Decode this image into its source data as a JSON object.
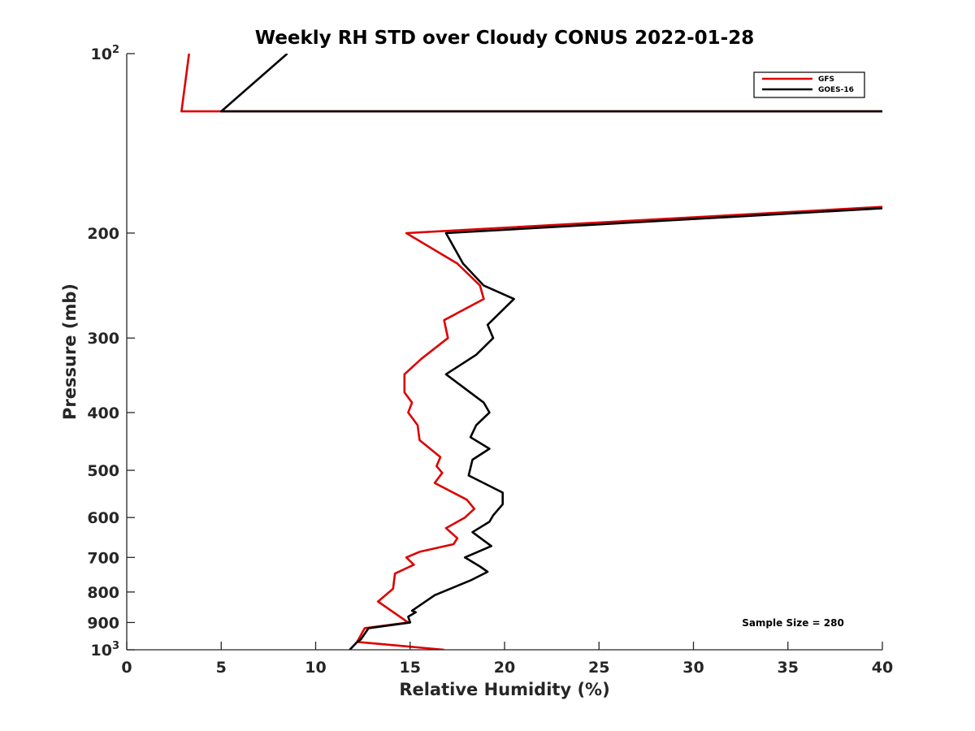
{
  "chart_data": {
    "type": "line",
    "title": "Weekly RH STD over Cloudy CONUS 2022-01-28",
    "xlabel": "Relative Humidity (%)",
    "ylabel": "Pressure (mb)",
    "xlim": [
      0,
      40
    ],
    "ylim": [
      100,
      1000
    ],
    "y_scale": "log",
    "y_reversed": true,
    "grid": false,
    "legend_position": "top-right",
    "x_ticks": [
      "0",
      "5",
      "10",
      "15",
      "20",
      "25",
      "30",
      "35",
      "40"
    ],
    "y_ticks": [
      {
        "value": 100,
        "base": "10",
        "exp": "2"
      },
      {
        "value": 200,
        "label": "200"
      },
      {
        "value": 300,
        "label": "300"
      },
      {
        "value": 400,
        "label": "400"
      },
      {
        "value": 500,
        "label": "500"
      },
      {
        "value": 600,
        "label": "600"
      },
      {
        "value": 700,
        "label": "700"
      },
      {
        "value": 800,
        "label": "800"
      },
      {
        "value": 900,
        "label": "900"
      },
      {
        "value": 1000,
        "base": "10",
        "exp": "3"
      }
    ],
    "annotation": "Sample Size = 280",
    "series": [
      {
        "name": "GFS",
        "color": "#dd0000",
        "points": [
          [
            3.3,
            100
          ],
          [
            2.9,
            125
          ],
          [
            41,
            125
          ],
          [
            41,
            180
          ],
          [
            14.8,
            200
          ],
          [
            17.5,
            225
          ],
          [
            18.7,
            245
          ],
          [
            18.9,
            258
          ],
          [
            16.8,
            280
          ],
          [
            17,
            300
          ],
          [
            15.6,
            325
          ],
          [
            14.7,
            345
          ],
          [
            14.7,
            370
          ],
          [
            15.1,
            385
          ],
          [
            14.9,
            400
          ],
          [
            15.4,
            420
          ],
          [
            15.5,
            445
          ],
          [
            16.6,
            475
          ],
          [
            16.4,
            492
          ],
          [
            16.7,
            505
          ],
          [
            16.3,
            525
          ],
          [
            18,
            560
          ],
          [
            18.4,
            580
          ],
          [
            17.9,
            600
          ],
          [
            16.9,
            625
          ],
          [
            17.5,
            650
          ],
          [
            17.3,
            665
          ],
          [
            15.5,
            685
          ],
          [
            14.8,
            700
          ],
          [
            15.2,
            720
          ],
          [
            14.2,
            745
          ],
          [
            14.1,
            790
          ],
          [
            13.3,
            830
          ],
          [
            14.9,
            900
          ],
          [
            12.6,
            920
          ],
          [
            12.2,
            970
          ],
          [
            16.8,
            1000
          ]
        ]
      },
      {
        "name": "GOES-16",
        "color": "#000000",
        "points": [
          [
            8.5,
            100
          ],
          [
            5,
            125
          ],
          [
            41,
            125
          ],
          [
            41,
            181
          ],
          [
            16.9,
            200
          ],
          [
            17.8,
            225
          ],
          [
            18.9,
            245
          ],
          [
            20.5,
            258
          ],
          [
            19.1,
            285
          ],
          [
            19.4,
            300
          ],
          [
            18.5,
            320
          ],
          [
            16.9,
            345
          ],
          [
            18.9,
            385
          ],
          [
            19.2,
            400
          ],
          [
            18.5,
            420
          ],
          [
            18.2,
            440
          ],
          [
            19.2,
            460
          ],
          [
            18.3,
            480
          ],
          [
            18.1,
            510
          ],
          [
            19.9,
            545
          ],
          [
            19.9,
            570
          ],
          [
            19.4,
            595
          ],
          [
            19.2,
            610
          ],
          [
            18.3,
            635
          ],
          [
            19.3,
            670
          ],
          [
            17.9,
            700
          ],
          [
            18.7,
            725
          ],
          [
            19.1,
            740
          ],
          [
            18.2,
            765
          ],
          [
            16.3,
            810
          ],
          [
            15.1,
            860
          ],
          [
            15.3,
            865
          ],
          [
            14.9,
            880
          ],
          [
            15,
            900
          ],
          [
            12.8,
            920
          ],
          [
            12.4,
            960
          ],
          [
            12.2,
            970
          ],
          [
            11.8,
            1000
          ]
        ]
      }
    ]
  }
}
